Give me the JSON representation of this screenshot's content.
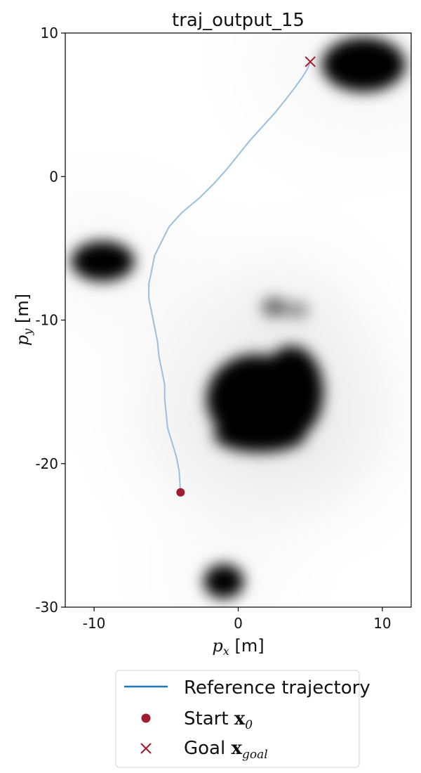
{
  "chart_data": {
    "type": "line",
    "title": "traj_output_15",
    "xlabel_var": "p",
    "xlabel_sub": "x",
    "xlabel_unit": " [m]",
    "ylabel_var": "p",
    "ylabel_sub": "y",
    "ylabel_unit": " [m]",
    "xlim": [
      -12,
      12
    ],
    "ylim": [
      -30,
      10
    ],
    "xticks": [
      -10,
      0,
      10
    ],
    "yticks": [
      10,
      0,
      -10,
      -20,
      -30
    ],
    "grid": false,
    "legend_position": "bottom-center",
    "colors": {
      "trajectory": "#9bbfe0",
      "legend_line": "#1f77b4",
      "marker": "#a01c30",
      "obstacle": "#000000"
    },
    "series": [
      {
        "name": "Reference trajectory",
        "x": [
          -4,
          -4.1,
          -4.3,
          -4.6,
          -4.9,
          -5.0,
          -5.1,
          -5.1,
          -5.3,
          -5.5,
          -5.6,
          -5.8,
          -6.0,
          -6.2,
          -6.2,
          -6.0,
          -5.8,
          -5.3,
          -4.8,
          -3.9,
          -2.7,
          -1.7,
          -0.8,
          0.0,
          0.8,
          1.7,
          2.6,
          3.4,
          4.0,
          4.5,
          4.8,
          5.0
        ],
        "y": [
          -22,
          -20.5,
          -19.5,
          -18.5,
          -17.5,
          -16.5,
          -15.5,
          -14.5,
          -13.5,
          -12.5,
          -11.5,
          -10.5,
          -9.5,
          -8.5,
          -7.5,
          -6.5,
          -5.5,
          -4.5,
          -3.5,
          -2.5,
          -1.5,
          -0.5,
          0.5,
          1.5,
          2.5,
          3.5,
          4.5,
          5.5,
          6.3,
          7.0,
          7.5,
          8.0
        ]
      }
    ],
    "start": {
      "name_text": "Start ",
      "name_math": "x",
      "name_sub": "0",
      "x": -4,
      "y": -22
    },
    "goal": {
      "name_text": "Goal ",
      "name_math": "x",
      "name_sub": "goal",
      "x": 5,
      "y": 8
    },
    "obstacles": [
      {
        "cx": 8.7,
        "cy": 7.8,
        "rx": 2.9,
        "ry": 1.9,
        "opacity": 1.0
      },
      {
        "cx": -9.4,
        "cy": -5.9,
        "rx": 2.2,
        "ry": 1.4,
        "opacity": 1.0
      },
      {
        "cx": 1.2,
        "cy": -15.5,
        "rx": 3.4,
        "ry": 3.1,
        "opacity": 1.0
      },
      {
        "cx": 3.7,
        "cy": -15.0,
        "rx": 2.2,
        "ry": 3.2,
        "opacity": 1.0
      },
      {
        "cx": 1.5,
        "cy": -18.0,
        "rx": 3.2,
        "ry": 1.2,
        "opacity": 1.0
      },
      {
        "cx": 2.5,
        "cy": -9.1,
        "rx": 0.9,
        "ry": 0.7,
        "opacity": 0.55
      },
      {
        "cx": 4.1,
        "cy": -9.3,
        "rx": 0.8,
        "ry": 0.6,
        "opacity": 0.4
      },
      {
        "cx": -1.0,
        "cy": -28.2,
        "rx": 1.4,
        "ry": 1.2,
        "opacity": 1.0
      }
    ]
  }
}
